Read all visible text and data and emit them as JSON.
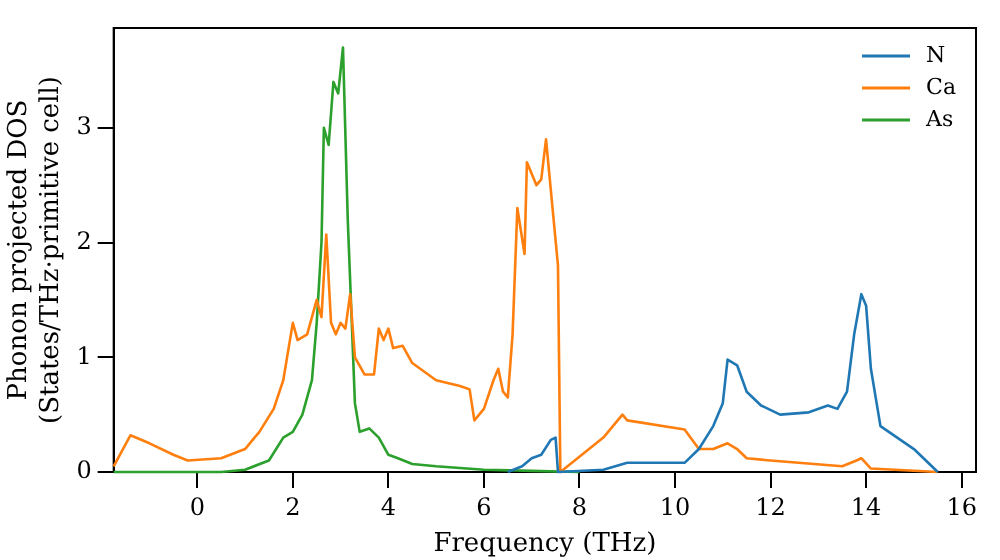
{
  "chart_data": {
    "type": "line",
    "xlabel": "Frequency (THz)",
    "ylabel": "Phonon projected DOS\n(States/THz·primitive cell)",
    "xlim": [
      -1.75,
      16.3
    ],
    "ylim": [
      0,
      3.87
    ],
    "xticks": [
      0,
      2,
      4,
      6,
      8,
      10,
      12,
      14,
      16
    ],
    "yticks": [
      0,
      1,
      2,
      3
    ],
    "grid": false,
    "legend": "top right",
    "series": [
      {
        "name": "N",
        "color": "#1f77b4",
        "x": [
          6.5,
          6.8,
          7.0,
          7.2,
          7.4,
          7.5,
          7.55,
          8.5,
          9,
          10,
          10.2,
          10.5,
          10.8,
          11.0,
          11.1,
          11.3,
          11.5,
          11.8,
          12.2,
          12.8,
          13.2,
          13.4,
          13.6,
          13.75,
          13.9,
          14.0,
          14.1,
          14.3,
          15,
          15.5
        ],
        "values": [
          0,
          0.05,
          0.12,
          0.15,
          0.28,
          0.3,
          0,
          0.02,
          0.08,
          0.08,
          0.08,
          0.2,
          0.4,
          0.6,
          0.98,
          0.93,
          0.7,
          0.58,
          0.5,
          0.52,
          0.58,
          0.55,
          0.7,
          1.2,
          1.55,
          1.45,
          0.9,
          0.4,
          0.2,
          0
        ]
      },
      {
        "name": "Ca",
        "color": "#ff7f0e",
        "x": [
          -1.75,
          -1.4,
          -1,
          -0.5,
          -0.2,
          0.5,
          1,
          1.3,
          1.6,
          1.8,
          2.0,
          2.1,
          2.3,
          2.5,
          2.6,
          2.7,
          2.8,
          2.9,
          3.0,
          3.1,
          3.2,
          3.3,
          3.5,
          3.7,
          3.8,
          3.9,
          4.0,
          4.1,
          4.3,
          4.5,
          5,
          5.5,
          5.7,
          5.8,
          6.0,
          6.2,
          6.3,
          6.4,
          6.5,
          6.6,
          6.7,
          6.85,
          6.9,
          7.1,
          7.2,
          7.3,
          7.55,
          7.6,
          7.75,
          8.5,
          8.9,
          9.0,
          10.2,
          10.5,
          10.8,
          11.1,
          11.3,
          11.5,
          12,
          13.5,
          13.8,
          13.9,
          14.1,
          15.5
        ],
        "values": [
          0.05,
          0.32,
          0.25,
          0.15,
          0.1,
          0.12,
          0.2,
          0.35,
          0.55,
          0.8,
          1.3,
          1.15,
          1.2,
          1.5,
          1.35,
          2.07,
          1.3,
          1.2,
          1.3,
          1.25,
          1.55,
          1.0,
          0.85,
          0.85,
          1.25,
          1.15,
          1.25,
          1.08,
          1.1,
          0.95,
          0.8,
          0.75,
          0.72,
          0.45,
          0.55,
          0.8,
          0.9,
          0.7,
          0.65,
          1.2,
          2.3,
          1.9,
          2.7,
          2.5,
          2.55,
          2.9,
          1.8,
          0,
          0.05,
          0.3,
          0.5,
          0.45,
          0.37,
          0.2,
          0.2,
          0.25,
          0.2,
          0.12,
          0.1,
          0.05,
          0.1,
          0.12,
          0.03,
          0
        ]
      },
      {
        "name": "As",
        "color": "#2ca02c",
        "x": [
          -1.75,
          0.5,
          1.0,
          1.5,
          1.8,
          2.0,
          2.2,
          2.4,
          2.5,
          2.6,
          2.65,
          2.75,
          2.85,
          2.95,
          3.05,
          3.15,
          3.3,
          3.4,
          3.6,
          3.8,
          4.0,
          4.2,
          4.5,
          5,
          6,
          7,
          8
        ],
        "values": [
          0,
          0,
          0.02,
          0.1,
          0.3,
          0.35,
          0.5,
          0.8,
          1.3,
          2.0,
          3.0,
          2.85,
          3.4,
          3.3,
          3.7,
          2.2,
          0.6,
          0.35,
          0.38,
          0.3,
          0.15,
          0.12,
          0.07,
          0.05,
          0.02,
          0.01,
          0
        ]
      }
    ]
  }
}
